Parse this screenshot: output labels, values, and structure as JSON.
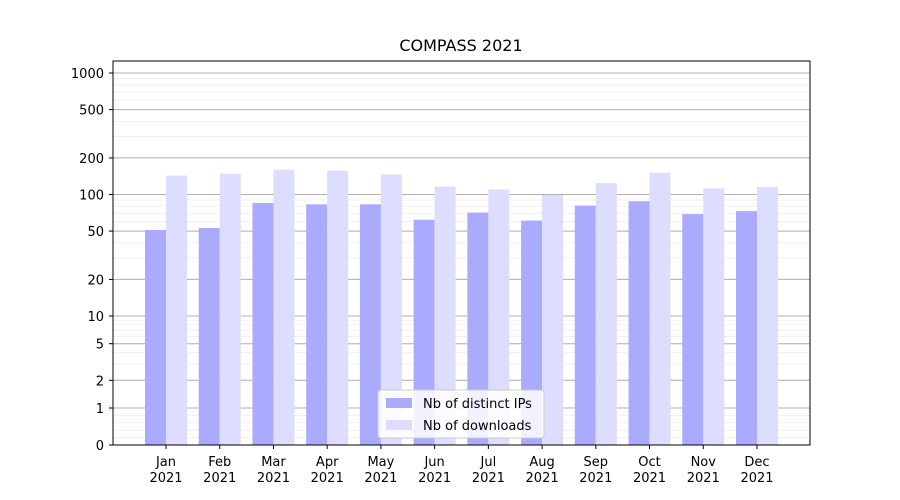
{
  "chart_data": {
    "type": "bar",
    "title": "COMPASS 2021",
    "xlabel": "",
    "ylabel": "",
    "y_scale": "symlog",
    "ylim": [
      0,
      1300
    ],
    "y_ticks": [
      0,
      1,
      2,
      5,
      10,
      20,
      50,
      100,
      200,
      500,
      1000
    ],
    "grid": "horizontal",
    "legend_position": "lower-center",
    "categories": [
      [
        "Jan",
        "2021"
      ],
      [
        "Feb",
        "2021"
      ],
      [
        "Mar",
        "2021"
      ],
      [
        "Apr",
        "2021"
      ],
      [
        "May",
        "2021"
      ],
      [
        "Jun",
        "2021"
      ],
      [
        "Jul",
        "2021"
      ],
      [
        "Aug",
        "2021"
      ],
      [
        "Sep",
        "2021"
      ],
      [
        "Oct",
        "2021"
      ],
      [
        "Nov",
        "2021"
      ],
      [
        "Dec",
        "2021"
      ]
    ],
    "series": [
      {
        "name": "Nb of distinct IPs",
        "color": "#aaaaff",
        "values": [
          51,
          53,
          85,
          83,
          83,
          62,
          71,
          61,
          81,
          88,
          69,
          73
        ]
      },
      {
        "name": "Nb of downloads",
        "color": "#ddddff",
        "values": [
          143,
          148,
          160,
          157,
          146,
          116,
          110,
          99,
          124,
          151,
          112,
          115
        ]
      }
    ]
  }
}
